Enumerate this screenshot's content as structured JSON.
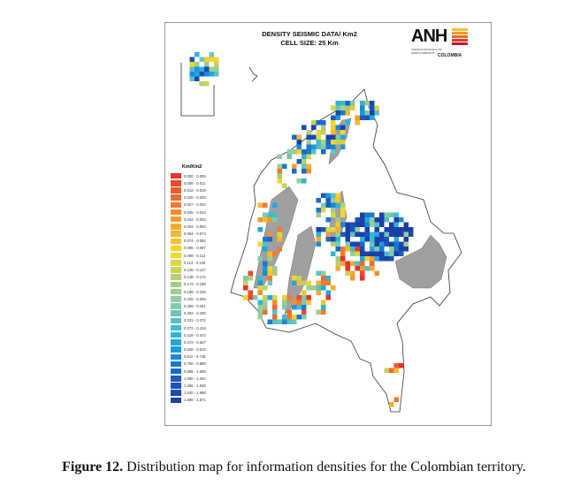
{
  "figure": {
    "title_line1": "DENSITY SEISMIC DATA/ Km2",
    "title_line2": "CELL SIZE: 25 Km",
    "logo": {
      "text": "ANH",
      "sub": "AGENCIA NACIONAL DE HIDROCARBUROS",
      "country": "COLOMBIA"
    },
    "legend": {
      "title": "Km/Km2",
      "items": [
        {
          "label": "0.000 - 0.005",
          "color": "#e8322a"
        },
        {
          "label": "0.006 - 0.011",
          "color": "#ec4a2c"
        },
        {
          "label": "0.012 - 0.019",
          "color": "#ee5a2e"
        },
        {
          "label": "0.020 - 0.026",
          "color": "#f06a30"
        },
        {
          "label": "0.027 - 0.034",
          "color": "#f27a30"
        },
        {
          "label": "0.035 - 0.043",
          "color": "#f48c30"
        },
        {
          "label": "0.044 - 0.053",
          "color": "#f39a30"
        },
        {
          "label": "0.054 - 0.063",
          "color": "#f5aa2c"
        },
        {
          "label": "0.064 - 0.073",
          "color": "#f7b82a"
        },
        {
          "label": "0.074 - 0.084",
          "color": "#f8c428"
        },
        {
          "label": "0.085 - 0.097",
          "color": "#f9d026"
        },
        {
          "label": "0.098 - 0.112",
          "color": "#f2d82a"
        },
        {
          "label": "0.113 - 0.126",
          "color": "#dcd840"
        },
        {
          "label": "0.126 - 0.147",
          "color": "#c4d458"
        },
        {
          "label": "0.148 - 0.172",
          "color": "#b4d070"
        },
        {
          "label": "0.173 - 0.198",
          "color": "#a4cc84"
        },
        {
          "label": "0.199 - 0.226",
          "color": "#9ccc90"
        },
        {
          "label": "0.226 - 0.258",
          "color": "#94cca0"
        },
        {
          "label": "0.259 - 0.291",
          "color": "#80c8b0"
        },
        {
          "label": "0.292 - 0.330",
          "color": "#6cc4bc"
        },
        {
          "label": "0.331 - 0.372",
          "color": "#56c0c8"
        },
        {
          "label": "0.373 - 0.418",
          "color": "#40bcd0"
        },
        {
          "label": "0.419 - 0.472",
          "color": "#2cb4d8"
        },
        {
          "label": "0.473 - 0.527",
          "color": "#1ea8dc"
        },
        {
          "label": "0.528 - 0.610",
          "color": "#1a98dc"
        },
        {
          "label": "0.611 - 0.746",
          "color": "#1a88d8"
        },
        {
          "label": "0.750 - 0.895",
          "color": "#1a78d0"
        },
        {
          "label": "0.895 - 1.089",
          "color": "#1a68c8"
        },
        {
          "label": "1.090 - 1.254",
          "color": "#1a5cc0"
        },
        {
          "label": "1.255 - 1.539",
          "color": "#1a52b8"
        },
        {
          "label": "1.540 - 1.898",
          "color": "#1a48b0"
        },
        {
          "label": "1.899 - 2.871",
          "color": "#1a40a8"
        }
      ]
    },
    "gray_color": "#a0a0a0"
  },
  "caption": {
    "label": "Figure 12.",
    "text": " Distribution map for information densities for the Colombian territory."
  }
}
